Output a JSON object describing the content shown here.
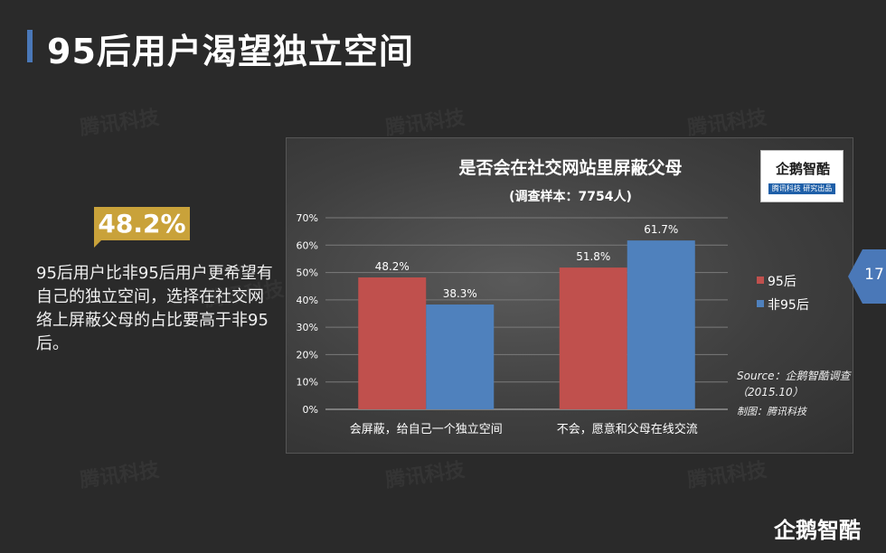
{
  "page": {
    "title": "95后用户渴望独立空间",
    "page_number": "17"
  },
  "watermark": {
    "text": "腾讯科技"
  },
  "callout": {
    "stat": "48.2%",
    "description": "95后用户比非95后用户更希望有自己的独立空间，选择在社交网络上屏蔽父母的占比要高于非95后。"
  },
  "chart_logo": {
    "name": "企鹅智酷",
    "tagline": "腾讯科技  研究出品"
  },
  "footer_logo": {
    "text": "企鹅智酷"
  },
  "colors": {
    "background": "#2a2a2a",
    "accent_blue": "#4a78b8",
    "badge_gold": "#c9a23a",
    "series_95": "#c0504d",
    "series_non95": "#4f81bd"
  },
  "chart_data": {
    "type": "bar",
    "title": "是否会在社交网站里屏蔽父母",
    "subtitle": "(调查样本：7754人)",
    "categories": [
      "会屏蔽，给自己一个独立空间",
      "不会，愿意和父母在线交流"
    ],
    "series": [
      {
        "name": "95后",
        "values": [
          48.2,
          51.8
        ],
        "labels": [
          "48.2%",
          "51.8%"
        ],
        "color": "#c0504d"
      },
      {
        "name": "非95后",
        "values": [
          38.3,
          61.7
        ],
        "labels": [
          "38.3%",
          "61.7%"
        ],
        "color": "#4f81bd"
      }
    ],
    "ylim": [
      0,
      70
    ],
    "yticks": [
      0,
      10,
      20,
      30,
      40,
      50,
      60,
      70
    ],
    "ytick_labels": [
      "0%",
      "10%",
      "20%",
      "30%",
      "40%",
      "50%",
      "60%",
      "70%"
    ],
    "grid": true,
    "legend": "right",
    "source": "Source：企鹅智酷调查",
    "source_date": "（2015.10）",
    "credit": "制图：腾讯科技"
  }
}
